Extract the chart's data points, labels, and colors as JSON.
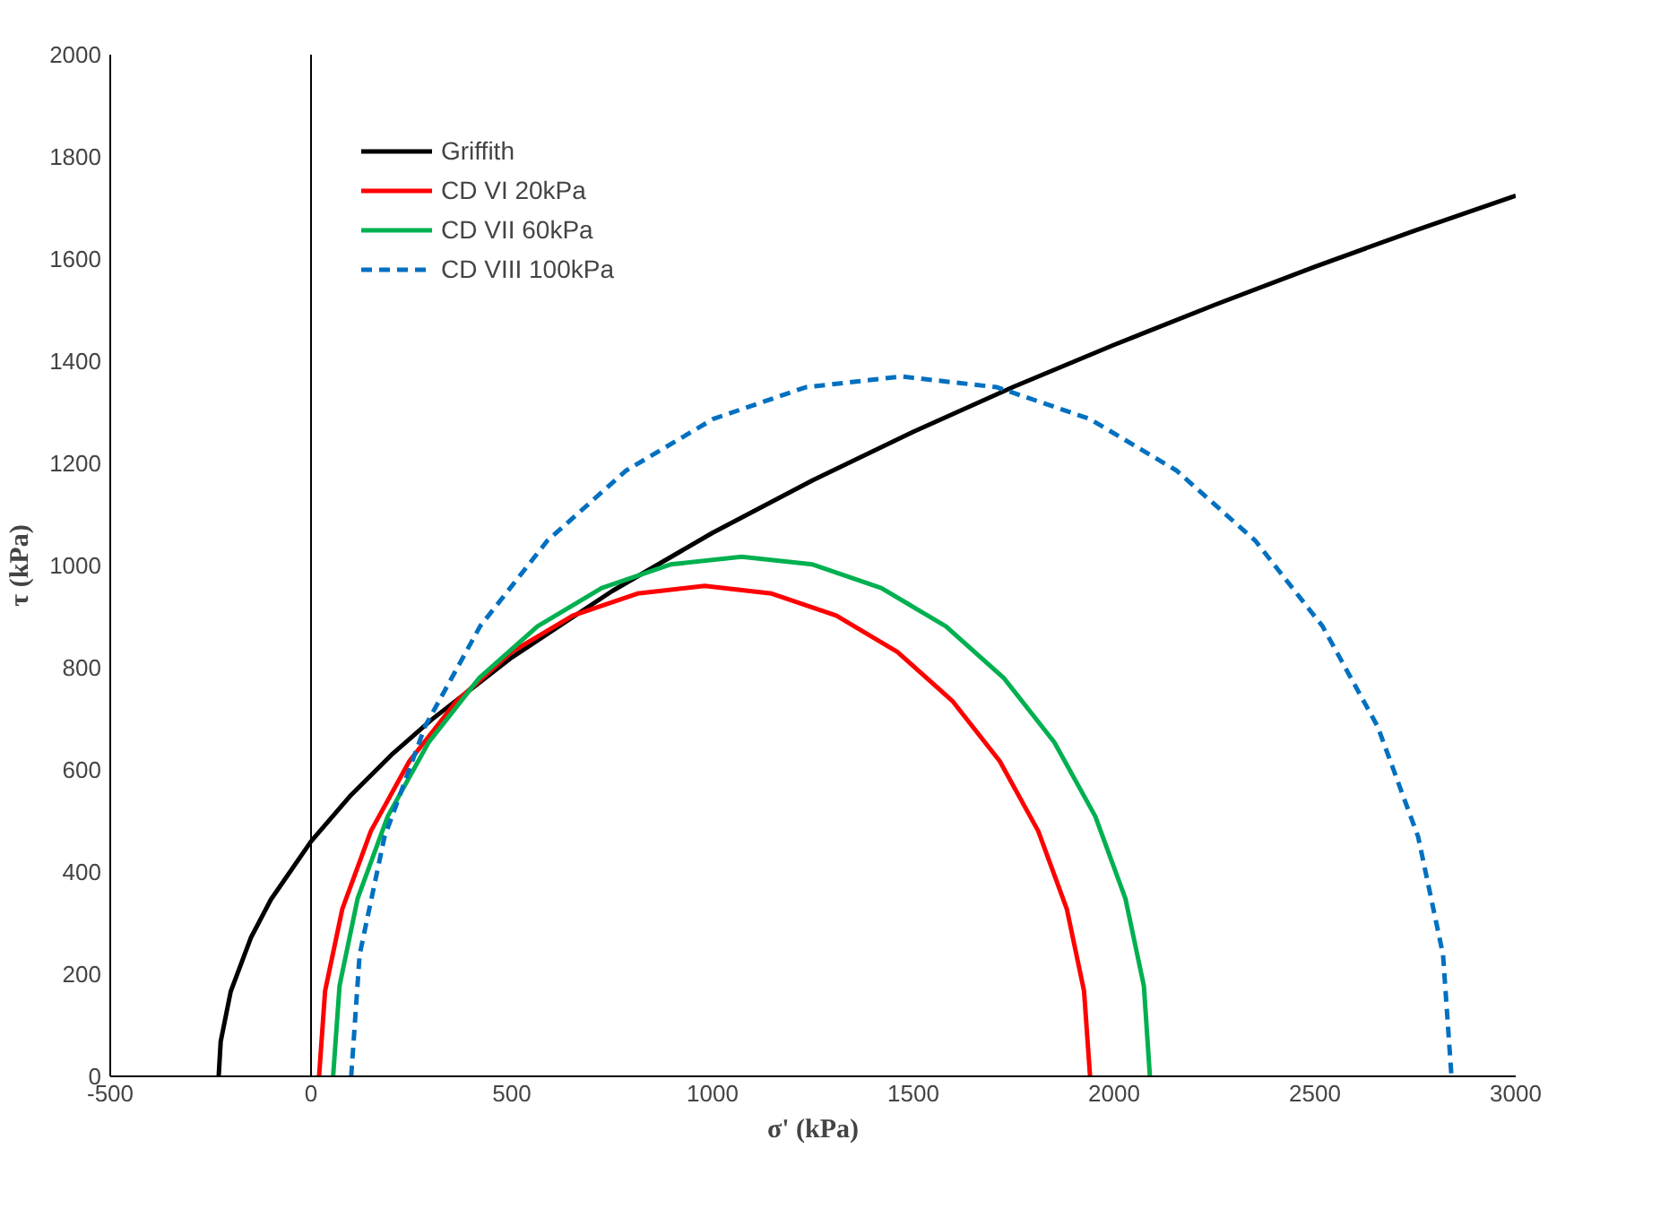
{
  "chart_data": {
    "type": "line",
    "xlabel": "σ' (kPa)",
    "ylabel": "τ (kPa)",
    "xlim": [
      -500,
      3000
    ],
    "ylim": [
      0,
      2000
    ],
    "xticks": [
      -500,
      0,
      500,
      1000,
      1500,
      2000,
      2500,
      3000
    ],
    "yticks": [
      0,
      200,
      400,
      600,
      800,
      1000,
      1200,
      1400,
      1600,
      1800,
      2000
    ],
    "grid": false,
    "legend": "top left",
    "marker": "none",
    "ref_lines": [
      {
        "axis": "x",
        "value": 0,
        "label": null,
        "color": "#000000"
      }
    ],
    "series": [
      {
        "name": "Griffith",
        "color": "#000000",
        "line_style": "solid",
        "x": [
          -230,
          -225,
          -200,
          -150,
          -100,
          0,
          100,
          200,
          300,
          500,
          750,
          1000,
          1250,
          1500,
          1750,
          2000,
          2250,
          2500,
          2750,
          3000
        ],
        "values": [
          0,
          68,
          166,
          271,
          346,
          460,
          551,
          629,
          698,
          820,
          950,
          1064,
          1167,
          1262,
          1350,
          1432,
          1510,
          1585,
          1656,
          1724
        ]
      },
      {
        "name": "CD VI 20kPa",
        "color": "#ff0000",
        "line_style": "solid",
        "x": [
          20,
          35,
          78,
          149,
          245,
          363,
          500,
          652,
          813,
          980,
          1147,
          1308,
          1460,
          1597,
          1715,
          1811,
          1882,
          1925,
          1940
        ],
        "values": [
          0,
          167,
          328,
          480,
          617,
          735,
          831,
          902,
          945,
          960,
          945,
          902,
          831,
          735,
          617,
          480,
          328,
          167,
          0
        ]
      },
      {
        "name": "CD VII 60kPa",
        "color": "#00b050",
        "line_style": "solid",
        "x": [
          55,
          71,
          116,
          191,
          293,
          418,
          564,
          724,
          895,
          1072,
          1249,
          1420,
          1581,
          1726,
          1851,
          1953,
          2028,
          2074,
          2089
        ],
        "values": [
          0,
          177,
          348,
          509,
          654,
          779,
          881,
          956,
          1002,
          1017,
          1002,
          956,
          881,
          779,
          654,
          509,
          348,
          177,
          0
        ]
      },
      {
        "name": "CD VIII 100kPa",
        "color": "#0070c0",
        "line_style": "dashed",
        "x": [
          100,
          121,
          183,
          284,
          421,
          589,
          785,
          1002,
          1232,
          1470,
          1708,
          1939,
          2155,
          2351,
          2519,
          2656,
          2757,
          2819,
          2840
        ],
        "values": [
          0,
          238,
          469,
          685,
          881,
          1049,
          1186,
          1287,
          1349,
          1370,
          1349,
          1287,
          1186,
          1049,
          881,
          685,
          469,
          238,
          0
        ]
      }
    ]
  }
}
